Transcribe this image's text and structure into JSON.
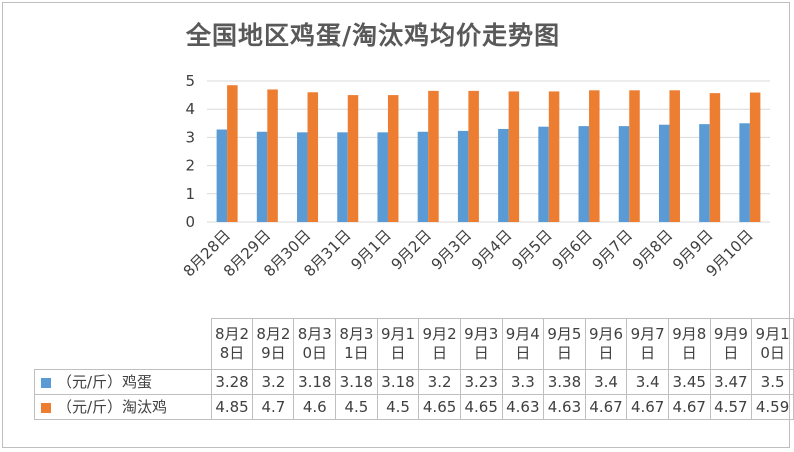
{
  "chart_data": {
    "type": "bar",
    "title": "全国地区鸡蛋/淘汰鸡均价走势图",
    "categories": [
      "8月28日",
      "8月29日",
      "8月30日",
      "8月31日",
      "9月1日",
      "9月2日",
      "9月3日",
      "9月4日",
      "9月5日",
      "9月6日",
      "9月7日",
      "9月8日",
      "9月9日",
      "9月10日"
    ],
    "series": [
      {
        "name": "（元/斤）鸡蛋",
        "color": "#5b9bd5",
        "values": [
          3.28,
          3.2,
          3.18,
          3.18,
          3.18,
          3.2,
          3.23,
          3.3,
          3.38,
          3.4,
          3.4,
          3.45,
          3.47,
          3.5
        ]
      },
      {
        "name": "（元/斤）淘汰鸡",
        "color": "#ed7d31",
        "values": [
          4.85,
          4.7,
          4.6,
          4.5,
          4.5,
          4.65,
          4.65,
          4.63,
          4.63,
          4.67,
          4.67,
          4.67,
          4.57,
          4.59
        ]
      }
    ],
    "ylim": [
      0,
      5
    ],
    "yticks": [
      "0",
      "1",
      "2",
      "3",
      "4",
      "5"
    ],
    "grid": true,
    "legend": "data-table"
  }
}
